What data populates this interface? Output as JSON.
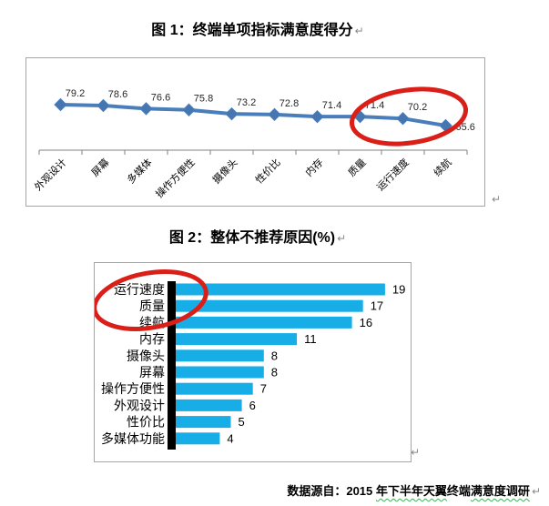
{
  "document": {
    "figure1_title": "图 1：终端单项指标满意度得分",
    "figure2_title": "图 2：整体不推荐原因(%)",
    "paragraph_mark": "↵",
    "source_note": {
      "seg1": "数据源自：2015 ",
      "seg2_wavy": "年下半年天翼",
      "seg3": "终端",
      "seg4_wavy": "满意度调研"
    }
  },
  "colors": {
    "line_series": "#4a7ebb",
    "marker_fill": "#4576b2",
    "bar_series": "#17aee8",
    "annotation_red": "#da1f18",
    "axis_gray": "#808080",
    "axis_black": "#000000",
    "chart_border": "#a6a6a6",
    "data_label_text": "#262626",
    "category_text": "#000000",
    "squiggle_green": "#3cb054",
    "pilcrow_gray": "#8a8a8a"
  },
  "chart_data": [
    {
      "type": "line",
      "title": "图 1：终端单项指标满意度得分",
      "categories": [
        "外观设计",
        "屏幕",
        "多媒体",
        "操作方便性",
        "摄像头",
        "性价比",
        "内存",
        "质量",
        "运行速度",
        "续航"
      ],
      "values": [
        79.2,
        78.6,
        76.6,
        75.8,
        73.2,
        72.8,
        71.4,
        71.4,
        70.2,
        65.6
      ],
      "marker": "diamond",
      "data_labels_shown": true,
      "xlabel": "",
      "ylabel": "",
      "y_axis_shown": false,
      "grid": false,
      "legend": "none",
      "annotation": {
        "shape": "red-ellipse",
        "around_categories": [
          "质量",
          "运行速度",
          "续航"
        ]
      }
    },
    {
      "type": "bar",
      "orientation": "horizontal",
      "title": "图 2：整体不推荐原因(%)",
      "categories": [
        "运行速度",
        "质量",
        "续航",
        "内存",
        "摄像头",
        "屏幕",
        "操作方便性",
        "外观设计",
        "性价比",
        "多媒体功能"
      ],
      "values": [
        19,
        17,
        16,
        11,
        8,
        8,
        7,
        6,
        5,
        4
      ],
      "data_labels_shown": true,
      "xlabel": "",
      "ylabel": "",
      "xlim": [
        0,
        20
      ],
      "grid": false,
      "legend": "none",
      "annotation": {
        "shape": "red-ellipse",
        "around_categories": [
          "运行速度",
          "质量"
        ]
      }
    }
  ]
}
